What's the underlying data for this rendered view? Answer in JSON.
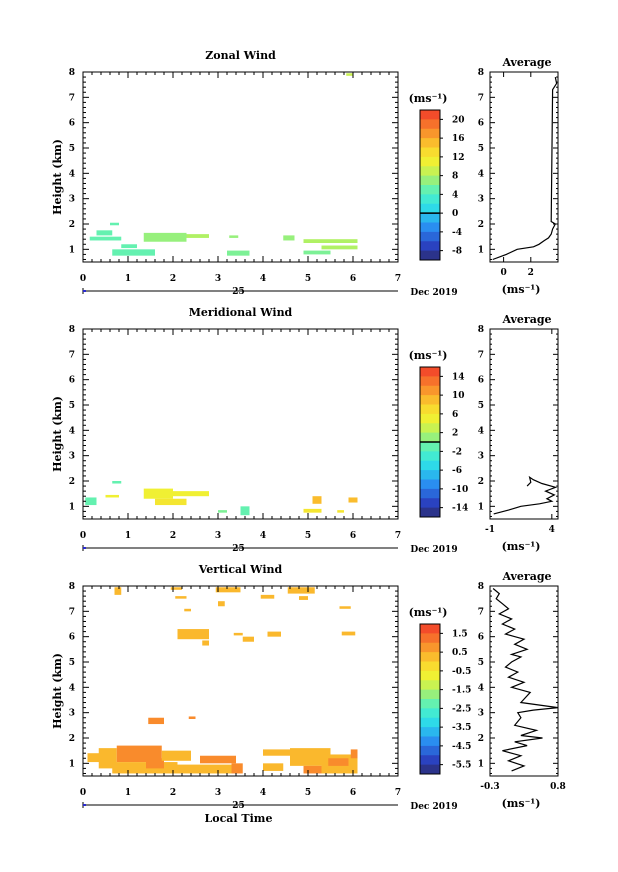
{
  "date_label": "Dec 2019",
  "day_label": "25",
  "xlabel": "Local Time",
  "chart_data": [
    {
      "type": "heatmap",
      "title": "Zonal Wind",
      "xlabel": "",
      "ylabel": "Height (km)",
      "xlim": [
        0,
        7
      ],
      "ylim": [
        0.5,
        8
      ],
      "xticks": [
        "0",
        "1",
        "2",
        "3",
        "4",
        "5",
        "6",
        "7"
      ],
      "yticks": [
        "1",
        "2",
        "3",
        "4",
        "5",
        "6",
        "7",
        "8"
      ],
      "colorbar": {
        "unit": "(ms⁻¹)",
        "ticks": [
          "20",
          "16",
          "12",
          "8",
          "4",
          "0",
          "-4",
          "-8"
        ],
        "min": -10,
        "max": 22,
        "zero_line": 0
      },
      "cells": [
        {
          "x0": 0.3,
          "x1": 0.65,
          "y0": 1.55,
          "y1": 1.75,
          "v": 5
        },
        {
          "x0": 0.15,
          "x1": 0.85,
          "y0": 1.35,
          "y1": 1.5,
          "v": 5
        },
        {
          "x0": 0.6,
          "x1": 0.8,
          "y0": 1.95,
          "y1": 2.05,
          "v": 5
        },
        {
          "x0": 0.65,
          "x1": 1.6,
          "y0": 0.75,
          "y1": 1.0,
          "v": 5
        },
        {
          "x0": 0.85,
          "x1": 1.2,
          "y0": 1.05,
          "y1": 1.2,
          "v": 5
        },
        {
          "x0": 1.35,
          "x1": 2.3,
          "y0": 1.3,
          "y1": 1.65,
          "v": 7
        },
        {
          "x0": 2.3,
          "x1": 2.8,
          "y0": 1.45,
          "y1": 1.6,
          "v": 8
        },
        {
          "x0": 3.2,
          "x1": 3.7,
          "y0": 0.75,
          "y1": 0.95,
          "v": 6
        },
        {
          "x0": 3.25,
          "x1": 3.45,
          "y0": 1.45,
          "y1": 1.55,
          "v": 7
        },
        {
          "x0": 4.45,
          "x1": 4.7,
          "y0": 1.35,
          "y1": 1.55,
          "v": 7
        },
        {
          "x0": 4.9,
          "x1": 6.1,
          "y0": 1.25,
          "y1": 1.4,
          "v": 8
        },
        {
          "x0": 5.3,
          "x1": 6.1,
          "y0": 1.0,
          "y1": 1.15,
          "v": 8
        },
        {
          "x0": 4.9,
          "x1": 5.5,
          "y0": 0.8,
          "y1": 0.95,
          "v": 6
        },
        {
          "x0": 5.85,
          "x1": 6.0,
          "y0": 7.85,
          "y1": 7.95,
          "v": 9
        }
      ]
    },
    {
      "type": "heatmap",
      "title": "Meridional Wind",
      "xlabel": "",
      "ylabel": "Height (km)",
      "xlim": [
        0,
        7
      ],
      "ylim": [
        0.5,
        8
      ],
      "xticks": [
        "0",
        "1",
        "2",
        "3",
        "4",
        "5",
        "6",
        "7"
      ],
      "yticks": [
        "1",
        "2",
        "3",
        "4",
        "5",
        "6",
        "7",
        "8"
      ],
      "colorbar": {
        "unit": "(ms⁻¹)",
        "ticks": [
          "14",
          "10",
          "6",
          "2",
          "-2",
          "-6",
          "-10",
          "-14"
        ],
        "min": -16,
        "max": 16,
        "zero_line": 0
      },
      "cells": [
        {
          "x0": 0.05,
          "x1": 0.3,
          "y0": 1.05,
          "y1": 1.35,
          "v": -1
        },
        {
          "x0": 0.5,
          "x1": 0.8,
          "y0": 1.35,
          "y1": 1.45,
          "v": 5
        },
        {
          "x0": 0.65,
          "x1": 0.85,
          "y0": 1.9,
          "y1": 2.0,
          "v": -1
        },
        {
          "x0": 1.35,
          "x1": 2.0,
          "y0": 1.3,
          "y1": 1.7,
          "v": 5
        },
        {
          "x0": 2.0,
          "x1": 2.8,
          "y0": 1.4,
          "y1": 1.6,
          "v": 5
        },
        {
          "x0": 1.6,
          "x1": 2.3,
          "y0": 1.05,
          "y1": 1.3,
          "v": 6
        },
        {
          "x0": 3.0,
          "x1": 3.2,
          "y0": 0.75,
          "y1": 0.85,
          "v": 0
        },
        {
          "x0": 3.5,
          "x1": 3.7,
          "y0": 0.65,
          "y1": 1.0,
          "v": -1
        },
        {
          "x0": 4.9,
          "x1": 5.3,
          "y0": 0.75,
          "y1": 0.9,
          "v": 6
        },
        {
          "x0": 5.1,
          "x1": 5.3,
          "y0": 1.1,
          "y1": 1.4,
          "v": 9
        },
        {
          "x0": 5.9,
          "x1": 6.1,
          "y0": 1.15,
          "y1": 1.35,
          "v": 9
        },
        {
          "x0": 5.65,
          "x1": 5.8,
          "y0": 0.75,
          "y1": 0.85,
          "v": 6
        }
      ]
    },
    {
      "type": "heatmap",
      "title": "Vertical Wind",
      "xlabel": "Local Time",
      "ylabel": "Height (km)",
      "xlim": [
        0,
        7
      ],
      "ylim": [
        0.5,
        8
      ],
      "xticks": [
        "0",
        "1",
        "2",
        "3",
        "4",
        "5",
        "6",
        "7"
      ],
      "yticks": [
        "1",
        "2",
        "3",
        "4",
        "5",
        "6",
        "7",
        "8"
      ],
      "colorbar": {
        "unit": "(ms⁻¹)",
        "ticks": [
          "1.5",
          "0.5",
          "-0.5",
          "-1.5",
          "-2.5",
          "-3.5",
          "-4.5",
          "-5.5"
        ],
        "min": -6.0,
        "max": 2.0,
        "zero_line": null
      },
      "cells": [
        {
          "x0": 0.7,
          "x1": 0.85,
          "y0": 7.65,
          "y1": 7.95,
          "v": 0.3
        },
        {
          "x0": 1.95,
          "x1": 2.2,
          "y0": 7.85,
          "y1": 7.95,
          "v": 0.3
        },
        {
          "x0": 2.05,
          "x1": 2.3,
          "y0": 7.5,
          "y1": 7.6,
          "v": 0.3
        },
        {
          "x0": 2.25,
          "x1": 2.4,
          "y0": 7.0,
          "y1": 7.1,
          "v": 0.3
        },
        {
          "x0": 2.95,
          "x1": 3.5,
          "y0": 7.75,
          "y1": 7.95,
          "v": 0.3
        },
        {
          "x0": 3.0,
          "x1": 3.15,
          "y0": 7.2,
          "y1": 7.4,
          "v": 0.3
        },
        {
          "x0": 3.95,
          "x1": 4.25,
          "y0": 7.5,
          "y1": 7.65,
          "v": 0.3
        },
        {
          "x0": 4.55,
          "x1": 5.15,
          "y0": 7.7,
          "y1": 7.95,
          "v": 0.3
        },
        {
          "x0": 4.8,
          "x1": 5.0,
          "y0": 7.45,
          "y1": 7.6,
          "v": 0.3
        },
        {
          "x0": 5.7,
          "x1": 5.95,
          "y0": 7.1,
          "y1": 7.2,
          "v": 0.3
        },
        {
          "x0": 2.1,
          "x1": 2.8,
          "y0": 5.9,
          "y1": 6.3,
          "v": 0.3
        },
        {
          "x0": 2.65,
          "x1": 2.8,
          "y0": 5.65,
          "y1": 5.85,
          "v": 0.3
        },
        {
          "x0": 3.35,
          "x1": 3.55,
          "y0": 6.05,
          "y1": 6.15,
          "v": 0.3
        },
        {
          "x0": 3.55,
          "x1": 3.8,
          "y0": 5.8,
          "y1": 6.0,
          "v": 0.3
        },
        {
          "x0": 4.1,
          "x1": 4.4,
          "y0": 6.0,
          "y1": 6.2,
          "v": 0.3
        },
        {
          "x0": 5.75,
          "x1": 6.05,
          "y0": 6.05,
          "y1": 6.2,
          "v": 0.3
        },
        {
          "x0": 0.1,
          "x1": 0.5,
          "y0": 1.05,
          "y1": 1.4,
          "v": 0.3
        },
        {
          "x0": 0.35,
          "x1": 0.75,
          "y0": 0.8,
          "y1": 1.6,
          "v": 0.3
        },
        {
          "x0": 0.75,
          "x1": 1.75,
          "y0": 1.05,
          "y1": 1.7,
          "v": 0.9
        },
        {
          "x0": 0.65,
          "x1": 2.1,
          "y0": 0.6,
          "y1": 1.05,
          "v": 0.3
        },
        {
          "x0": 1.4,
          "x1": 1.8,
          "y0": 0.8,
          "y1": 1.2,
          "v": 0.9
        },
        {
          "x0": 1.75,
          "x1": 2.4,
          "y0": 1.1,
          "y1": 1.5,
          "v": 0.3
        },
        {
          "x0": 2.1,
          "x1": 3.3,
          "y0": 0.6,
          "y1": 0.95,
          "v": 0.3
        },
        {
          "x0": 2.6,
          "x1": 3.4,
          "y0": 1.0,
          "y1": 1.3,
          "v": 0.9
        },
        {
          "x0": 3.3,
          "x1": 3.55,
          "y0": 0.6,
          "y1": 1.0,
          "v": 0.9
        },
        {
          "x0": 1.45,
          "x1": 1.8,
          "y0": 2.55,
          "y1": 2.8,
          "v": 0.9
        },
        {
          "x0": 2.35,
          "x1": 2.5,
          "y0": 2.75,
          "y1": 2.85,
          "v": 0.9
        },
        {
          "x0": 4.0,
          "x1": 4.6,
          "y0": 1.3,
          "y1": 1.55,
          "v": 0.3
        },
        {
          "x0": 4.0,
          "x1": 4.45,
          "y0": 0.7,
          "y1": 1.0,
          "v": 0.3
        },
        {
          "x0": 4.6,
          "x1": 5.5,
          "y0": 0.9,
          "y1": 1.6,
          "v": 0.3
        },
        {
          "x0": 4.9,
          "x1": 5.3,
          "y0": 0.6,
          "y1": 0.9,
          "v": 0.9
        },
        {
          "x0": 5.3,
          "x1": 6.1,
          "y0": 0.6,
          "y1": 1.35,
          "v": 0.3
        },
        {
          "x0": 5.45,
          "x1": 5.9,
          "y0": 0.9,
          "y1": 1.2,
          "v": 0.9
        },
        {
          "x0": 5.95,
          "x1": 6.1,
          "y0": 1.2,
          "y1": 1.55,
          "v": 0.9
        }
      ]
    },
    {
      "type": "line",
      "title": "Average",
      "xlabel": "(ms⁻¹)",
      "ylabel": "",
      "xlim": [
        -1,
        4
      ],
      "ylim": [
        0.5,
        8
      ],
      "xticks": [
        "0",
        "2"
      ],
      "xtick_vals": [
        0,
        2
      ],
      "yticks": [
        "1",
        "2",
        "3",
        "4",
        "5",
        "6",
        "7",
        "8"
      ],
      "x": [
        -0.8,
        0.2,
        1.0,
        2.2,
        2.6,
        3.0,
        3.3,
        3.5,
        3.6,
        3.8,
        3.5,
        3.6,
        3.9,
        3.8
      ],
      "y": [
        0.6,
        0.8,
        1.0,
        1.1,
        1.2,
        1.35,
        1.45,
        1.6,
        1.8,
        2.0,
        2.1,
        7.3,
        7.55,
        7.8
      ]
    },
    {
      "type": "line",
      "title": "Average",
      "xlabel": "(ms⁻¹)",
      "ylabel": "",
      "xlim": [
        -1,
        4.5
      ],
      "ylim": [
        0.5,
        8
      ],
      "xticks": [
        "-1",
        "4"
      ],
      "xtick_vals": [
        -1,
        4
      ],
      "yticks": [
        "1",
        "2",
        "3",
        "4",
        "5",
        "6",
        "7",
        "8"
      ],
      "x": [
        -0.7,
        0.5,
        1.5,
        3.0,
        4.0,
        3.6,
        4.2,
        3.5,
        4.3,
        3.2,
        2.5,
        2.2,
        2.3,
        2.0
      ],
      "y": [
        0.7,
        0.85,
        1.0,
        1.1,
        1.2,
        1.3,
        1.45,
        1.6,
        1.75,
        1.9,
        2.05,
        2.15,
        1.95,
        1.8
      ]
    },
    {
      "type": "line",
      "title": "Average",
      "xlabel": "(ms⁻¹)",
      "ylabel": "",
      "xlim": [
        -0.3,
        0.8
      ],
      "ylim": [
        0.5,
        8
      ],
      "xticks": [
        "-0.3",
        "0.8"
      ],
      "xtick_vals": [
        -0.3,
        0.8
      ],
      "yticks": [
        "1",
        "2",
        "3",
        "4",
        "5",
        "6",
        "7",
        "8"
      ],
      "x": [
        0.05,
        0.25,
        0.0,
        0.2,
        -0.1,
        0.3,
        0.1,
        0.55,
        0.2,
        0.45,
        0.1,
        0.2,
        0.15,
        0.4,
        0.6,
        0.8,
        0.2,
        0.35,
        0.05,
        0.25,
        0.0,
        0.15,
        -0.05,
        0.05,
        0.2,
        0.05,
        0.3,
        0.1,
        0.25,
        -0.05,
        0.1,
        -0.1,
        0.05,
        -0.15,
        0.0,
        -0.1,
        -0.2,
        -0.15,
        -0.25
      ],
      "y": [
        0.7,
        0.9,
        1.1,
        1.3,
        1.5,
        1.7,
        1.85,
        2.0,
        2.1,
        2.3,
        2.5,
        2.8,
        3.0,
        3.1,
        3.15,
        3.2,
        3.4,
        3.8,
        4.0,
        4.2,
        4.4,
        4.6,
        4.8,
        5.0,
        5.2,
        5.3,
        5.5,
        5.7,
        5.9,
        6.1,
        6.3,
        6.5,
        6.7,
        6.9,
        7.1,
        7.3,
        7.5,
        7.7,
        7.9
      ]
    }
  ]
}
